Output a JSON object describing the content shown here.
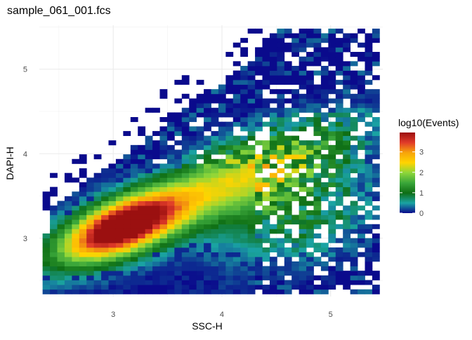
{
  "chart_data": {
    "type": "heatmap",
    "title": "sample_061_001.fcs",
    "xlabel": "SSC-H",
    "ylabel": "DAPI-H",
    "xlim": [
      2.32,
      5.48
    ],
    "ylim": [
      2.31,
      5.52
    ],
    "x_ticks": [
      {
        "value": 3,
        "label": "3"
      },
      {
        "value": 4,
        "label": "4"
      },
      {
        "value": 5,
        "label": "5"
      }
    ],
    "y_ticks": [
      {
        "value": 3,
        "label": "3"
      },
      {
        "value": 4,
        "label": "4"
      },
      {
        "value": 5,
        "label": "5"
      }
    ],
    "grid": true,
    "bins": {
      "nx": 46,
      "ny": 57,
      "x_range": [
        2.35,
        5.45
      ],
      "y_range": [
        2.34,
        5.48
      ]
    },
    "density": {
      "main_peak": {
        "x": 3.08,
        "y": 3.14,
        "log10_events": 3.95
      },
      "ridge_direction": "up-right along diagonal",
      "max_log10_events": 3.95
    },
    "legend": {
      "title": "log10(Events)",
      "position": "right",
      "ticks": [
        0,
        1,
        2,
        3
      ],
      "range": [
        0,
        3.95
      ],
      "colors": [
        "#0a0a8c",
        "#1aa3a3",
        "#0e6e14",
        "#3aa63a",
        "#8dd63a",
        "#ffd400",
        "#f7a40a",
        "#e03b2a",
        "#9b1010"
      ]
    }
  }
}
